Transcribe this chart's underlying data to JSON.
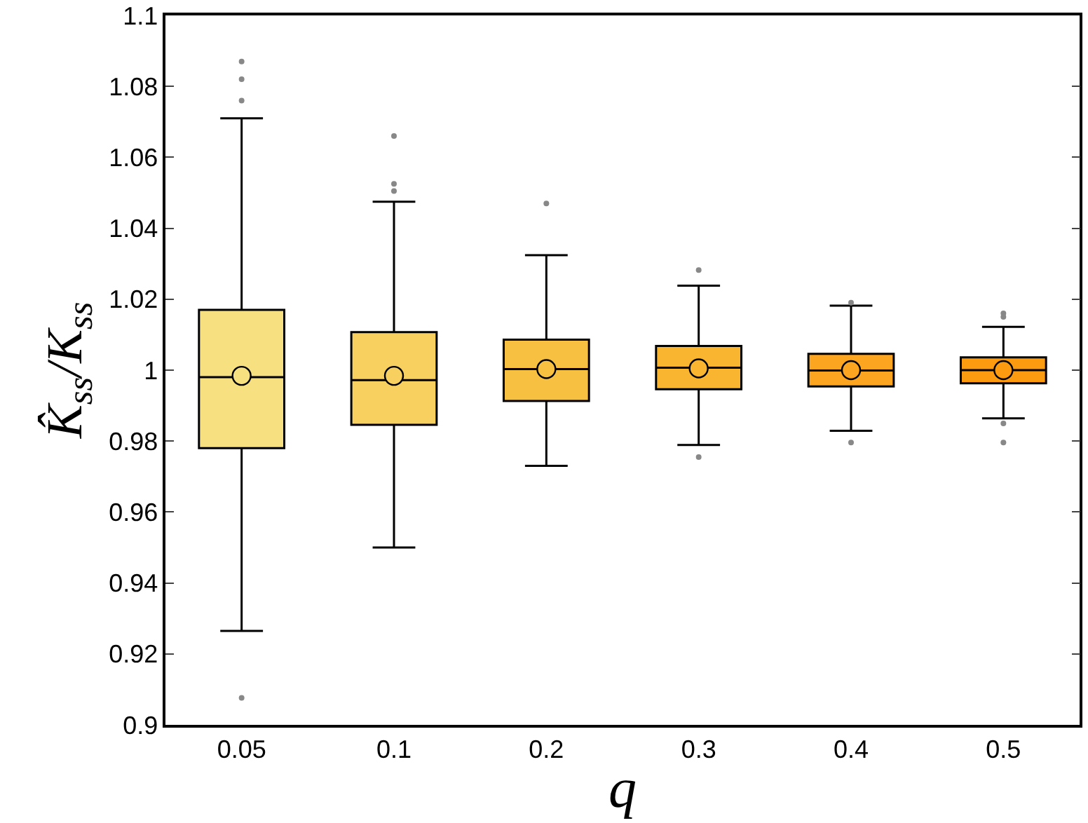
{
  "chart_data": {
    "type": "box",
    "xlabel": "q",
    "ylabel": "K̂$_{ss}$/K$_{ss}$",
    "categories": [
      "0.05",
      "0.1",
      "0.2",
      "0.3",
      "0.4",
      "0.5"
    ],
    "colors": [
      "#f7e07f",
      "#f7d060",
      "#f8c040",
      "#f9b530",
      "#fba520",
      "#fc9a10"
    ],
    "boxes": [
      {
        "low": 0.9265,
        "q1": 0.978,
        "median": 0.998,
        "q3": 1.017,
        "high": 1.071,
        "mean": 0.9984,
        "outliers": [
          1.087,
          1.082,
          1.076,
          0.9076
        ]
      },
      {
        "low": 0.95,
        "q1": 0.9846,
        "median": 0.9972,
        "q3": 1.0107,
        "high": 1.0475,
        "mean": 0.9984,
        "outliers": [
          1.066,
          1.0525,
          1.0505
        ]
      },
      {
        "low": 0.973,
        "q1": 0.9913,
        "median": 1.0003,
        "q3": 1.0086,
        "high": 1.0324,
        "mean": 1.0003,
        "outliers": [
          1.047
        ]
      },
      {
        "low": 0.9789,
        "q1": 0.9946,
        "median": 1.0007,
        "q3": 1.0068,
        "high": 1.0238,
        "mean": 1.0005,
        "outliers": [
          1.0282,
          0.9755
        ]
      },
      {
        "low": 0.9829,
        "q1": 0.9954,
        "median": 0.9999,
        "q3": 1.0046,
        "high": 1.0182,
        "mean": 1.0,
        "outliers": [
          1.019,
          0.9796
        ]
      },
      {
        "low": 0.9864,
        "q1": 0.9963,
        "median": 1.0,
        "q3": 1.0036,
        "high": 1.0122,
        "mean": 1.0,
        "outliers": [
          1.016,
          1.015,
          0.985,
          0.9796
        ]
      }
    ],
    "ylim": [
      0.9,
      1.1
    ],
    "yticks": [
      0.9,
      0.92,
      0.94,
      0.96,
      0.98,
      1,
      1.02,
      1.04,
      1.06,
      1.08,
      1.1
    ],
    "marker": "circle"
  }
}
